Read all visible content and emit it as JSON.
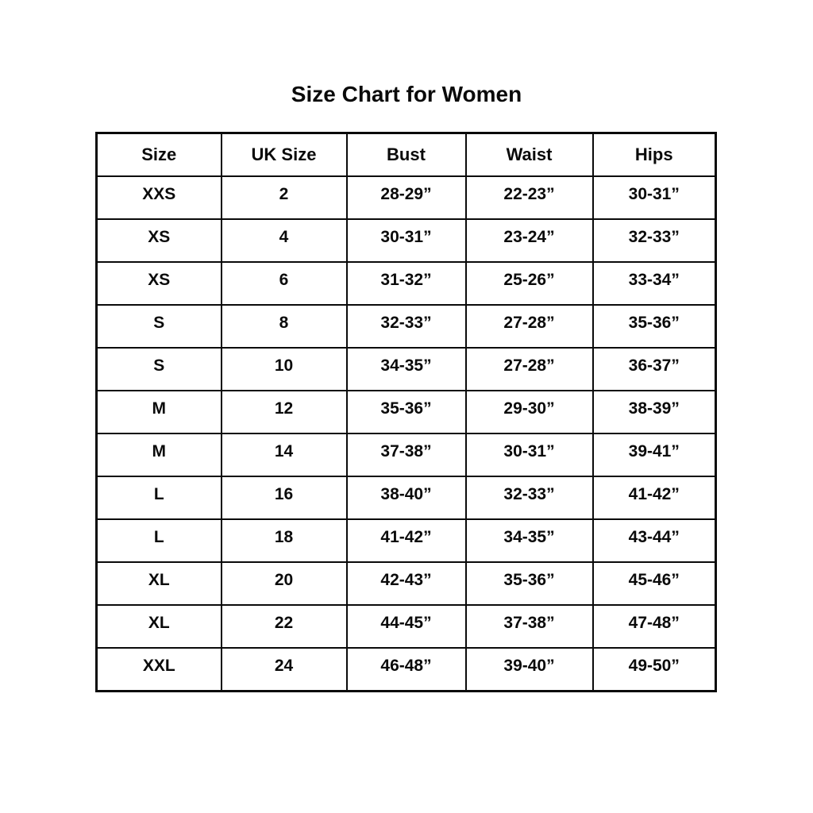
{
  "page": {
    "title": "Size Chart for Women"
  },
  "table": {
    "headers": [
      "Size",
      "UK Size",
      "Bust",
      "Waist",
      "Hips"
    ],
    "rows": [
      [
        "XXS",
        "2",
        "28-29”",
        "22-23”",
        "30-31”"
      ],
      [
        "XS",
        "4",
        "30-31”",
        "23-24”",
        "32-33”"
      ],
      [
        "XS",
        "6",
        "31-32”",
        "25-26”",
        "33-34”"
      ],
      [
        "S",
        "8",
        "32-33”",
        "27-28”",
        "35-36”"
      ],
      [
        "S",
        "10",
        "34-35”",
        "27-28”",
        "36-37”"
      ],
      [
        "M",
        "12",
        "35-36”",
        "29-30”",
        "38-39”"
      ],
      [
        "M",
        "14",
        "37-38”",
        "30-31”",
        "39-41”"
      ],
      [
        "L",
        "16",
        "38-40”",
        "32-33”",
        "41-42”"
      ],
      [
        "L",
        "18",
        "41-42”",
        "34-35”",
        "43-44”"
      ],
      [
        "XL",
        "20",
        "42-43”",
        "35-36”",
        "45-46”"
      ],
      [
        "XL",
        "22",
        "44-45”",
        "37-38”",
        "47-48”"
      ],
      [
        "XXL",
        "24",
        "46-48”",
        "39-40”",
        "49-50”"
      ]
    ]
  },
  "colors": {
    "background": "#ffffff",
    "border": "#0a0a0a",
    "text": "#0a0a0a"
  }
}
